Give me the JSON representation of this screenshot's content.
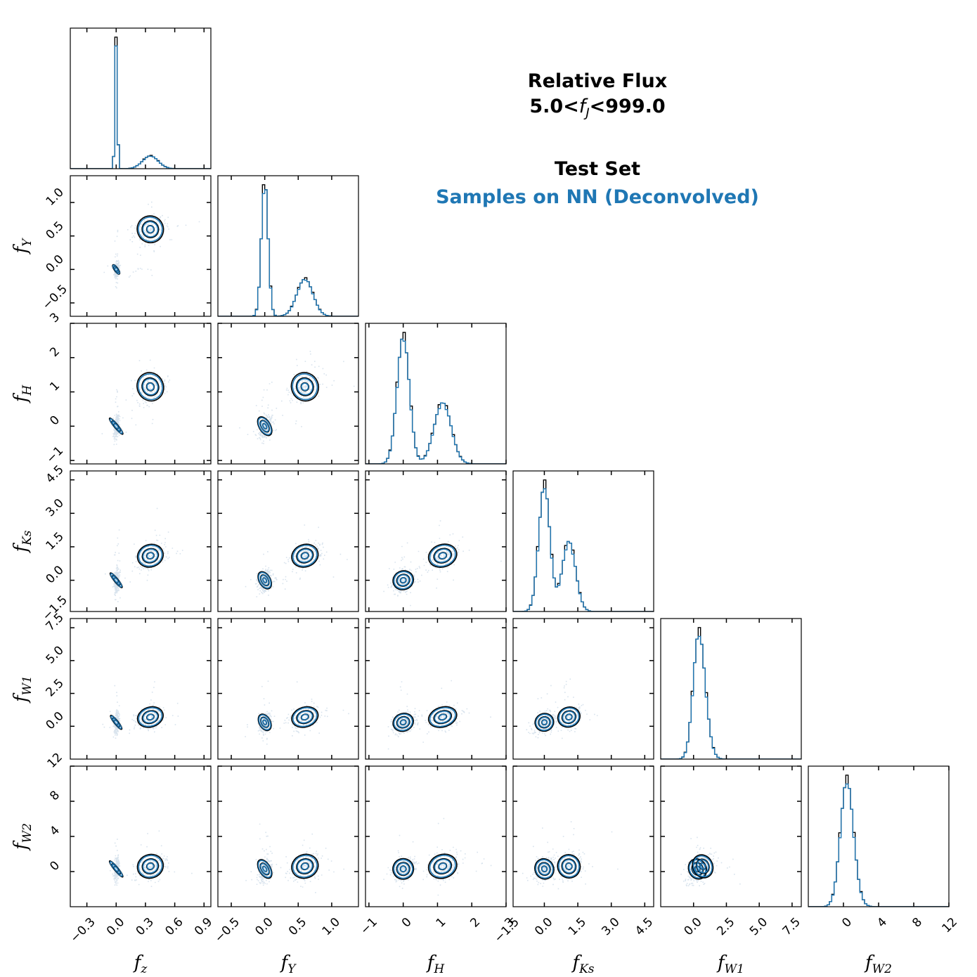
{
  "title": {
    "line1": "Relative Flux",
    "line2_prefix": "5.0<",
    "line2_var": "f",
    "line2_sub": "J",
    "line2_suffix": "<999.0"
  },
  "legend": [
    {
      "label": "Test Set",
      "color": "#000000"
    },
    {
      "label": "Samples on NN (Deconvolved)",
      "color": "#1f77b4"
    }
  ],
  "chart_data": {
    "type": "corner",
    "variables": [
      {
        "key": "fz",
        "label": "f",
        "sub": "z",
        "range": [
          -0.47,
          0.97
        ],
        "ticks": [
          -0.3,
          0.0,
          0.3,
          0.6,
          0.9
        ],
        "tick_labels": [
          "−0.3",
          "0.0",
          "0.3",
          "0.6",
          "0.9"
        ]
      },
      {
        "key": "fY",
        "label": "f",
        "sub": "Y",
        "range": [
          -0.7,
          1.4
        ],
        "ticks": [
          -0.5,
          0.0,
          0.5,
          1.0
        ],
        "tick_labels": [
          "−0.5",
          "0.0",
          "0.5",
          "1.0"
        ]
      },
      {
        "key": "fH",
        "label": "f",
        "sub": "H",
        "range": [
          -1.1,
          3.0
        ],
        "ticks": [
          -1,
          0,
          1,
          2,
          3
        ],
        "tick_labels": [
          "−1",
          "0",
          "1",
          "2",
          "3"
        ]
      },
      {
        "key": "fKs",
        "label": "f",
        "sub": "Ks",
        "range": [
          -1.4,
          4.9
        ],
        "ticks": [
          -1.5,
          0.0,
          1.5,
          3.0,
          4.5
        ],
        "tick_labels": [
          "−1.5",
          "0.0",
          "1.5",
          "3.0",
          "4.5"
        ]
      },
      {
        "key": "fW1",
        "label": "f",
        "sub": "W1",
        "range": [
          -2.5,
          8.2
        ],
        "ticks": [
          0.0,
          2.5,
          5.0,
          7.5
        ],
        "tick_labels": [
          "0.0",
          "2.5",
          "5.0",
          "7.5"
        ]
      },
      {
        "key": "fW2",
        "label": "f",
        "sub": "W2",
        "range": [
          -4.0,
          12.0
        ],
        "ticks": [
          0,
          4,
          8,
          12
        ],
        "tick_labels": [
          "0",
          "4",
          "8",
          "12"
        ]
      }
    ],
    "components": [
      {
        "weight": 0.6,
        "mean": [
          0.0,
          0.0,
          0.0,
          0.0,
          0.3,
          0.3
        ],
        "sd": [
          0.012,
          0.05,
          0.18,
          0.25,
          0.4,
          0.7
        ]
      },
      {
        "weight": 0.4,
        "mean": [
          0.35,
          0.6,
          1.15,
          1.1,
          0.7,
          0.6
        ],
        "sd": [
          0.08,
          0.12,
          0.25,
          0.3,
          0.45,
          0.8
        ]
      }
    ],
    "series": [
      {
        "name": "Test Set",
        "color": "#000000"
      },
      {
        "name": "Samples on NN (Deconvolved)",
        "color": "#1f77b4"
      }
    ]
  }
}
